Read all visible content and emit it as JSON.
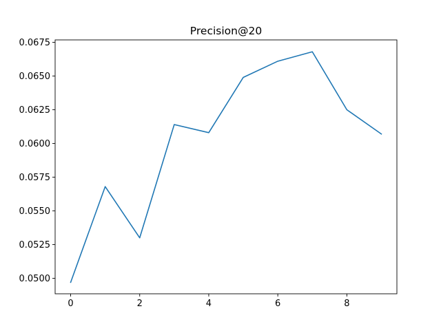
{
  "chart_data": {
    "type": "line",
    "title": "Precision@20",
    "xlabel": "",
    "ylabel": "",
    "x": [
      0,
      1,
      2,
      3,
      4,
      5,
      6,
      7,
      8,
      9
    ],
    "series": [
      {
        "values": [
          0.0497,
          0.0568,
          0.053,
          0.0614,
          0.0608,
          0.0649,
          0.0661,
          0.0668,
          0.0625,
          0.0607
        ]
      }
    ],
    "xticks": [
      0,
      2,
      4,
      6,
      8
    ],
    "xtick_labels": [
      "0",
      "2",
      "4",
      "6",
      "8"
    ],
    "yticks": [
      0.05,
      0.0525,
      0.055,
      0.0575,
      0.06,
      0.0625,
      0.065,
      0.0675
    ],
    "ytick_labels": [
      "0.0500",
      "0.0525",
      "0.0550",
      "0.0575",
      "0.0600",
      "0.0625",
      "0.0650",
      "0.0675"
    ],
    "xlim": [
      -0.45,
      9.45
    ],
    "ylim": [
      0.04885,
      0.06768
    ],
    "grid": false,
    "legend": "none",
    "colors": {
      "line": "#1f77b4",
      "axes": "#000000",
      "background": "#ffffff"
    }
  }
}
